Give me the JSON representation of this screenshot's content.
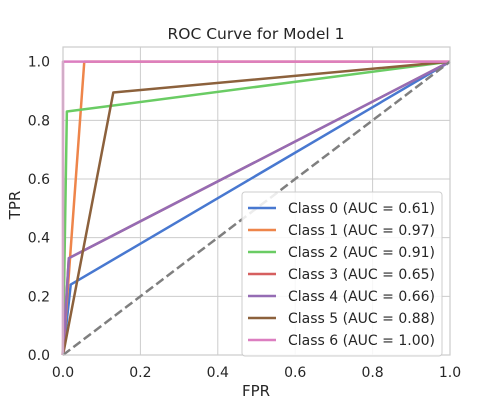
{
  "chart_data": {
    "type": "line",
    "title": "ROC Curve for Model 1",
    "xlabel": "FPR",
    "ylabel": "TPR",
    "xlim": [
      0.0,
      1.0
    ],
    "ylim": [
      0.0,
      1.05
    ],
    "xticks": [
      "0.0",
      "0.2",
      "0.4",
      "0.6",
      "0.8",
      "1.0"
    ],
    "yticks": [
      "0.0",
      "0.2",
      "0.4",
      "0.6",
      "0.8",
      "1.0"
    ],
    "grid": true,
    "legend_position": "lower-right",
    "diagonal": {
      "x": [
        0,
        1
      ],
      "y": [
        0,
        1
      ],
      "color": "#7f7f7f",
      "style": "dashed"
    },
    "series": [
      {
        "name": "Class 0 (AUC = 0.61)",
        "color": "#4878d0",
        "x": [
          0,
          0.02,
          1
        ],
        "y": [
          0,
          0.24,
          1
        ]
      },
      {
        "name": "Class 1 (AUC = 0.97)",
        "color": "#ee854a",
        "x": [
          0,
          0.055,
          1
        ],
        "y": [
          0,
          1.0,
          1
        ]
      },
      {
        "name": "Class 2 (AUC = 0.91)",
        "color": "#6acc64",
        "x": [
          0,
          0.01,
          1
        ],
        "y": [
          0,
          0.83,
          1
        ]
      },
      {
        "name": "Class 3 (AUC = 0.65)",
        "color": "#d65f5f",
        "x": [
          0,
          0.015,
          1
        ],
        "y": [
          0,
          0.33,
          1
        ]
      },
      {
        "name": "Class 4 (AUC = 0.66)",
        "color": "#956cb4",
        "x": [
          0,
          0.015,
          1
        ],
        "y": [
          0,
          0.33,
          1
        ]
      },
      {
        "name": "Class 5 (AUC = 0.88)",
        "color": "#8c613c",
        "x": [
          0,
          0.13,
          1
        ],
        "y": [
          0,
          0.895,
          1
        ]
      },
      {
        "name": "Class 6 (AUC = 1.00)",
        "color": "#dc7ec0",
        "x": [
          0,
          0,
          1
        ],
        "y": [
          0,
          1.0,
          1
        ]
      }
    ]
  }
}
